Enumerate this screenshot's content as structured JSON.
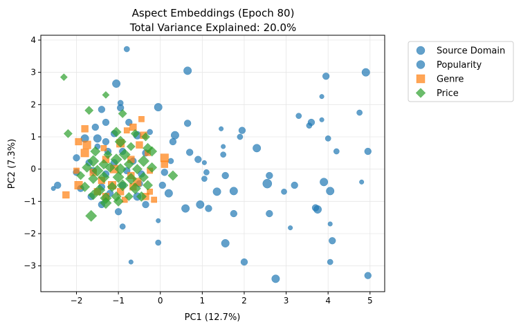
{
  "chart_data": {
    "type": "scatter",
    "title": "Aspect Embeddings (Epoch 80)",
    "subtitle": "Total Variance Explained: 20.0%",
    "xlabel": "PC1 (12.7%)",
    "ylabel": "PC2 (7.3%)",
    "xlim": [
      -2.85,
      5.35
    ],
    "ylim": [
      -3.8,
      4.15
    ],
    "xticks": [
      -2,
      -1,
      0,
      1,
      2,
      3,
      4,
      5
    ],
    "yticks": [
      -3,
      -2,
      -1,
      0,
      1,
      2,
      3,
      4
    ],
    "xtick_labels": [
      "−2",
      "−1",
      "0",
      "1",
      "2",
      "3",
      "4",
      "5"
    ],
    "ytick_labels": [
      "−3",
      "−2",
      "−1",
      "0",
      "1",
      "2",
      "3",
      "4"
    ],
    "grid": true,
    "legend_position": "outside-upper-right",
    "series": [
      {
        "name": "Source Domain",
        "marker": "circle",
        "color": "#1f77b4",
        "points": [
          [
            -0.8,
            3.72,
            5
          ],
          [
            0.65,
            3.05,
            7
          ],
          [
            -1.05,
            2.65,
            7
          ],
          [
            -0.95,
            2.05,
            5
          ],
          [
            -0.95,
            1.9,
            6
          ],
          [
            -0.05,
            1.92,
            7
          ],
          [
            -1.4,
            1.85,
            6
          ],
          [
            -1.3,
            1.45,
            6
          ],
          [
            -0.75,
            1.45,
            6
          ],
          [
            -0.25,
            1.15,
            5
          ],
          [
            -1.55,
            1.3,
            6
          ],
          [
            -1.1,
            1.1,
            6
          ],
          [
            -0.55,
            1.05,
            7
          ],
          [
            0.35,
            1.05,
            7
          ],
          [
            0.65,
            1.42,
            6
          ],
          [
            -1.8,
            0.95,
            7
          ],
          [
            -1.5,
            0.95,
            7
          ],
          [
            -1.3,
            0.85,
            6
          ],
          [
            0.3,
            0.85,
            6
          ],
          [
            -1.5,
            0.7,
            5
          ],
          [
            -1.25,
            0.55,
            6
          ],
          [
            -0.9,
            0.55,
            6
          ],
          [
            -0.35,
            0.5,
            6
          ],
          [
            0.7,
            0.52,
            6
          ],
          [
            -2.0,
            0.35,
            6
          ],
          [
            -1.7,
            0.2,
            6
          ],
          [
            -1.1,
            0.2,
            6
          ],
          [
            -0.65,
            0.25,
            6
          ],
          [
            0.25,
            0.25,
            5
          ],
          [
            0.9,
            0.3,
            6
          ],
          [
            1.05,
            0.2,
            4
          ],
          [
            1.5,
            0.45,
            5
          ],
          [
            1.5,
            0.7,
            4
          ],
          [
            1.45,
            1.25,
            4
          ],
          [
            1.95,
            1.2,
            6
          ],
          [
            1.9,
            1.0,
            5
          ],
          [
            2.3,
            0.65,
            7
          ],
          [
            -2.0,
            -0.1,
            6
          ],
          [
            -1.6,
            -0.05,
            6
          ],
          [
            -1.3,
            -0.15,
            6
          ],
          [
            -0.8,
            -0.05,
            6
          ],
          [
            -0.45,
            -0.15,
            6
          ],
          [
            0.1,
            -0.1,
            6
          ],
          [
            1.1,
            -0.1,
            5
          ],
          [
            1.05,
            -0.3,
            5
          ],
          [
            1.55,
            -0.2,
            6
          ],
          [
            2.6,
            -0.2,
            6
          ],
          [
            -2.45,
            -0.5,
            6
          ],
          [
            -2.55,
            -0.6,
            4
          ],
          [
            -1.9,
            -0.6,
            6
          ],
          [
            -1.4,
            -0.55,
            6
          ],
          [
            -0.9,
            -0.5,
            6
          ],
          [
            -0.5,
            -0.45,
            6
          ],
          [
            0.05,
            -0.5,
            6
          ],
          [
            1.35,
            -0.7,
            7
          ],
          [
            1.75,
            -0.68,
            7
          ],
          [
            2.55,
            -0.45,
            8
          ],
          [
            2.95,
            -0.7,
            5
          ],
          [
            3.2,
            -0.5,
            6
          ],
          [
            -1.65,
            -0.85,
            6
          ],
          [
            -1.2,
            -0.75,
            6
          ],
          [
            -0.55,
            -0.85,
            7
          ],
          [
            0.2,
            -0.75,
            7
          ],
          [
            3.9,
            -0.4,
            7
          ],
          [
            4.05,
            -0.68,
            7
          ],
          [
            4.8,
            -0.4,
            4
          ],
          [
            -1.4,
            -1.1,
            6
          ],
          [
            -0.35,
            -1.1,
            6
          ],
          [
            0.6,
            -1.22,
            7
          ],
          [
            0.95,
            -1.1,
            7
          ],
          [
            1.15,
            -1.22,
            6
          ],
          [
            1.75,
            -1.38,
            6
          ],
          [
            2.6,
            -1.38,
            6
          ],
          [
            3.7,
            -1.2,
            6
          ],
          [
            3.75,
            -1.25,
            7
          ],
          [
            -1.0,
            -1.32,
            6
          ],
          [
            -0.05,
            -1.6,
            4
          ],
          [
            -0.9,
            -1.78,
            5
          ],
          [
            3.1,
            -1.82,
            4
          ],
          [
            4.05,
            -1.7,
            4
          ],
          [
            1.55,
            -2.3,
            7
          ],
          [
            4.1,
            -2.22,
            6
          ],
          [
            -0.05,
            -2.28,
            5
          ],
          [
            2.0,
            -2.88,
            6
          ],
          [
            4.05,
            -2.88,
            5
          ],
          [
            -0.7,
            -2.88,
            4
          ],
          [
            2.75,
            -3.4,
            7
          ],
          [
            4.95,
            -3.3,
            6
          ],
          [
            4.9,
            3.0,
            7
          ],
          [
            3.95,
            2.88,
            6
          ],
          [
            3.85,
            2.25,
            4
          ],
          [
            3.3,
            1.65,
            5
          ],
          [
            3.6,
            1.45,
            6
          ],
          [
            3.55,
            1.35,
            5
          ],
          [
            3.85,
            1.53,
            4
          ],
          [
            4.75,
            1.75,
            5
          ],
          [
            4.0,
            0.95,
            5
          ],
          [
            4.2,
            0.55,
            5
          ],
          [
            4.95,
            0.55,
            6
          ]
        ]
      },
      {
        "name": "Popularity",
        "marker": "circle",
        "color": "#1f77b4",
        "points": []
      },
      {
        "name": "Genre",
        "marker": "square",
        "color": "#ff7f0e",
        "points": [
          [
            -0.45,
            1.55,
            5
          ],
          [
            -0.65,
            1.3,
            6
          ],
          [
            -0.8,
            1.2,
            5
          ],
          [
            -1.8,
            1.25,
            6
          ],
          [
            -0.4,
            1.05,
            6
          ],
          [
            -1.95,
            0.85,
            6
          ],
          [
            -1.75,
            0.75,
            7
          ],
          [
            -1.35,
            0.65,
            5
          ],
          [
            -0.95,
            0.8,
            7
          ],
          [
            -0.5,
            0.75,
            6
          ],
          [
            -1.8,
            0.5,
            7
          ],
          [
            -1.3,
            0.3,
            6
          ],
          [
            -0.7,
            0.3,
            6
          ],
          [
            -0.3,
            0.5,
            5
          ],
          [
            0.1,
            0.35,
            7
          ],
          [
            0.1,
            0.15,
            6
          ],
          [
            -2.0,
            -0.05,
            5
          ],
          [
            -1.6,
            -0.1,
            6
          ],
          [
            -1.1,
            0.0,
            7
          ],
          [
            -0.7,
            -0.2,
            6
          ],
          [
            -0.25,
            -0.05,
            5
          ],
          [
            -1.4,
            -0.35,
            6
          ],
          [
            -1.15,
            -0.5,
            7
          ],
          [
            -0.65,
            -0.55,
            6
          ],
          [
            -0.25,
            -0.7,
            5
          ],
          [
            -1.95,
            -0.5,
            7
          ],
          [
            -1.5,
            -0.7,
            6
          ],
          [
            -0.95,
            -0.7,
            6
          ],
          [
            -0.35,
            -0.85,
            6
          ],
          [
            -2.25,
            -0.8,
            6
          ],
          [
            -1.3,
            -0.85,
            6
          ],
          [
            -0.85,
            -0.95,
            5
          ],
          [
            -0.15,
            -0.95,
            5
          ],
          [
            -0.55,
            -0.4,
            7
          ]
        ]
      },
      {
        "name": "Price",
        "marker": "diamond",
        "color": "#2ca02c",
        "points": [
          [
            -2.3,
            2.85,
            5
          ],
          [
            -1.3,
            2.3,
            5
          ],
          [
            -1.7,
            1.82,
            6
          ],
          [
            -0.9,
            1.72,
            6
          ],
          [
            -2.2,
            1.1,
            6
          ],
          [
            -1.05,
            1.15,
            7
          ],
          [
            -0.6,
            1.1,
            6
          ],
          [
            -0.35,
            1.0,
            6
          ],
          [
            -0.95,
            0.85,
            8
          ],
          [
            -0.7,
            0.7,
            6
          ],
          [
            -0.3,
            0.65,
            7
          ],
          [
            -1.55,
            0.55,
            7
          ],
          [
            -1.25,
            0.45,
            6
          ],
          [
            -0.85,
            0.45,
            8
          ],
          [
            -0.2,
            0.55,
            7
          ],
          [
            -1.6,
            0.25,
            8
          ],
          [
            -1.35,
            0.15,
            7
          ],
          [
            -1.05,
            0.3,
            8
          ],
          [
            -0.75,
            0.15,
            7
          ],
          [
            -0.4,
            0.25,
            8
          ],
          [
            -1.75,
            0.05,
            7
          ],
          [
            -1.5,
            -0.05,
            8
          ],
          [
            -1.2,
            0.05,
            7
          ],
          [
            -0.95,
            0.0,
            8
          ],
          [
            -0.55,
            0.0,
            7
          ],
          [
            -0.2,
            0.05,
            7
          ],
          [
            0.3,
            -0.2,
            7
          ],
          [
            -1.9,
            -0.2,
            6
          ],
          [
            -1.6,
            -0.3,
            7
          ],
          [
            -1.35,
            -0.25,
            8
          ],
          [
            -1.0,
            -0.25,
            8
          ],
          [
            -0.7,
            -0.3,
            8
          ],
          [
            -0.4,
            -0.25,
            7
          ],
          [
            -1.8,
            -0.55,
            7
          ],
          [
            -1.45,
            -0.65,
            8
          ],
          [
            -1.15,
            -0.55,
            7
          ],
          [
            -0.9,
            -0.5,
            8
          ],
          [
            -0.6,
            -0.6,
            8
          ],
          [
            -0.3,
            -0.5,
            7
          ],
          [
            -1.6,
            -0.8,
            7
          ],
          [
            -1.3,
            -0.9,
            8
          ],
          [
            -1.05,
            -0.85,
            7
          ],
          [
            -0.75,
            -0.85,
            6
          ],
          [
            -0.45,
            -0.85,
            7
          ],
          [
            -1.3,
            -1.05,
            8
          ],
          [
            -1.0,
            -1.0,
            7
          ],
          [
            -1.65,
            -1.45,
            8
          ]
        ]
      }
    ]
  }
}
